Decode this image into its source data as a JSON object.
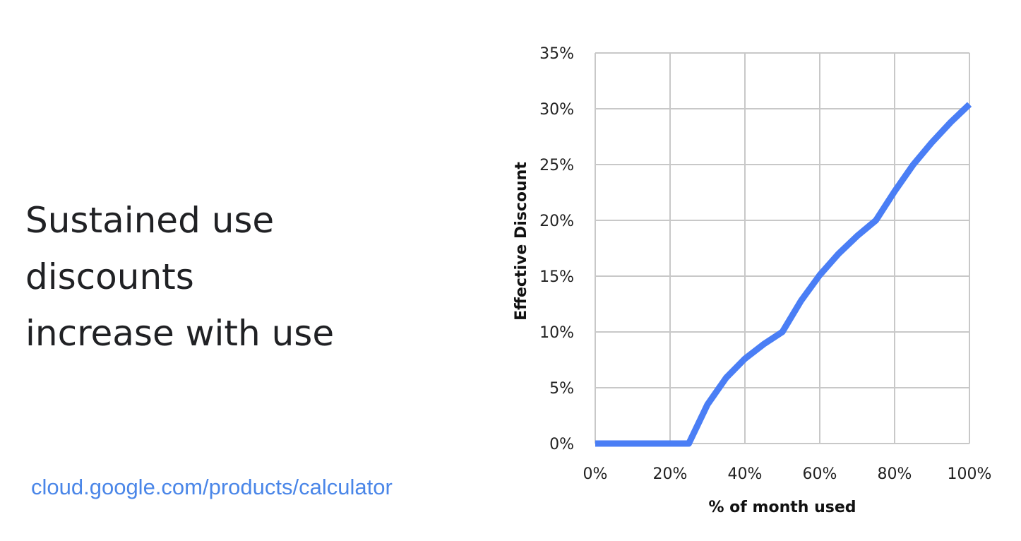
{
  "slide": {
    "title_lines": [
      "Sustained use",
      "discounts",
      "increase with use"
    ],
    "link_text": "cloud.google.com/products/calculator",
    "accent_color": "#4a86e8"
  },
  "chart_data": {
    "type": "line",
    "title": "",
    "xlabel": "% of month used",
    "ylabel": "Effective Discount",
    "xlim": [
      0,
      100
    ],
    "ylim": [
      0,
      35
    ],
    "xticks": [
      "0%",
      "20%",
      "40%",
      "60%",
      "80%",
      "100%"
    ],
    "xtick_values": [
      0,
      20,
      40,
      60,
      80,
      100
    ],
    "yticks": [
      "0%",
      "5%",
      "10%",
      "15%",
      "20%",
      "25%",
      "30%",
      "35%"
    ],
    "ytick_values": [
      0,
      5,
      10,
      15,
      20,
      25,
      30,
      35
    ],
    "grid": true,
    "legend": "none",
    "series": [
      {
        "color": "#4a7ef5",
        "x": [
          0,
          5,
          10,
          15,
          20,
          25,
          30,
          35,
          40,
          45,
          50,
          55,
          60,
          65,
          70,
          75,
          80,
          85,
          90,
          95,
          100
        ],
        "y": [
          0,
          0,
          0,
          0,
          0,
          0,
          3.5,
          5.9,
          7.6,
          8.9,
          10,
          12.8,
          15.1,
          17.0,
          18.6,
          20,
          22.6,
          25.0,
          27.0,
          28.8,
          30.4
        ]
      }
    ]
  }
}
